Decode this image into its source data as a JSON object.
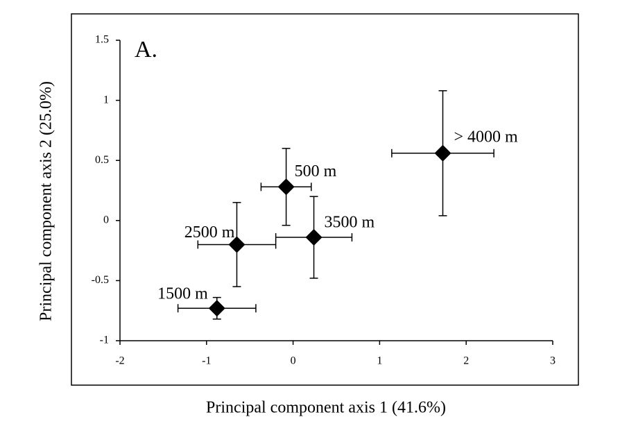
{
  "chart_data": {
    "type": "scatter",
    "panel_label": "A.",
    "x_label": "Principal component axis 1 (41.6%)",
    "y_label": "Principal component axis 2 (25.0%)",
    "series": [
      {
        "name": null,
        "color": "#000000",
        "labels": [
          "500 m",
          "> 4000 m",
          "3500 m",
          "2500 m",
          "1500 m"
        ],
        "x": [
          -0.08,
          1.73,
          0.24,
          -0.65,
          -0.88
        ],
        "values": [
          0.28,
          0.56,
          -0.14,
          -0.2,
          -0.73
        ],
        "xerr": [
          0.29,
          0.59,
          0.44,
          0.45,
          0.45
        ],
        "yerr": [
          0.32,
          0.52,
          0.34,
          0.35,
          0.09
        ]
      }
    ],
    "xlim": [
      -2,
      3
    ],
    "xticks": [
      -2,
      -1,
      0,
      1,
      2,
      3
    ],
    "ylim": [
      -1,
      1.5
    ],
    "yticks": [
      -1,
      -0.5,
      0,
      0.5,
      1,
      1.5
    ]
  }
}
